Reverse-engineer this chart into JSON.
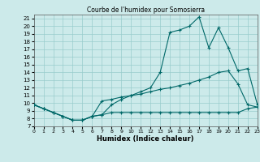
{
  "title": "Courbe de l'humidex pour Somosierra",
  "xlabel": "Humidex (Indice chaleur)",
  "bg_color": "#cceaea",
  "line_color": "#006868",
  "grid_color": "#99cccc",
  "xlim": [
    0,
    23
  ],
  "ylim": [
    7,
    21.5
  ],
  "yticks": [
    7,
    8,
    9,
    10,
    11,
    12,
    13,
    14,
    15,
    16,
    17,
    18,
    19,
    20,
    21
  ],
  "xticks": [
    0,
    1,
    2,
    3,
    4,
    5,
    6,
    7,
    8,
    9,
    10,
    11,
    12,
    13,
    14,
    15,
    16,
    17,
    18,
    19,
    20,
    21,
    22,
    23
  ],
  "line1_x": [
    0,
    1,
    2,
    3,
    4,
    5,
    6,
    7,
    8,
    9,
    10,
    11,
    12,
    13,
    14,
    15,
    16,
    17,
    18,
    19,
    20,
    21,
    22,
    23
  ],
  "line1_y": [
    9.8,
    9.3,
    8.8,
    8.3,
    7.8,
    7.8,
    8.3,
    8.5,
    9.8,
    10.5,
    11.0,
    11.5,
    12.0,
    14.0,
    19.2,
    19.5,
    20.0,
    21.2,
    17.2,
    19.8,
    17.2,
    14.2,
    14.5,
    9.8
  ],
  "line2_x": [
    0,
    1,
    2,
    3,
    4,
    5,
    6,
    7,
    8,
    9,
    10,
    11,
    12,
    13,
    14,
    15,
    16,
    17,
    18,
    19,
    20,
    21,
    22,
    23
  ],
  "line2_y": [
    9.8,
    9.3,
    8.8,
    8.3,
    7.8,
    7.8,
    8.3,
    10.3,
    10.5,
    10.8,
    11.0,
    11.2,
    11.5,
    11.8,
    12.0,
    12.3,
    12.6,
    13.0,
    13.4,
    14.0,
    14.2,
    12.5,
    9.8,
    9.5
  ],
  "line3_x": [
    0,
    1,
    2,
    3,
    4,
    5,
    6,
    7,
    8,
    9,
    10,
    11,
    12,
    13,
    14,
    15,
    16,
    17,
    18,
    19,
    20,
    21,
    22,
    23
  ],
  "line3_y": [
    9.8,
    9.3,
    8.8,
    8.3,
    7.8,
    7.8,
    8.3,
    8.5,
    8.8,
    8.8,
    8.8,
    8.8,
    8.8,
    8.8,
    8.8,
    8.8,
    8.8,
    8.8,
    8.8,
    8.8,
    8.8,
    8.8,
    9.3,
    9.5
  ]
}
